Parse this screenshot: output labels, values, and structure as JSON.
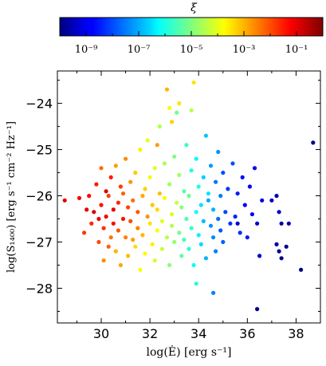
{
  "chart_data": {
    "type": "scatter",
    "xlabel": "log(Ė) [erg s⁻¹]",
    "ylabel": "log(S₁₄₀₀) [erg s⁻¹ cm⁻² Hz⁻¹]",
    "xlim": [
      28.2,
      39.0
    ],
    "ylim": [
      -28.75,
      -23.3
    ],
    "x_ticks": [
      30,
      32,
      34,
      36,
      38
    ],
    "y_ticks": [
      -24,
      -25,
      -26,
      -27,
      -28
    ],
    "x_tick_labels": [
      "30",
      "32",
      "34",
      "36",
      "38"
    ],
    "y_tick_labels": [
      "−24",
      "−25",
      "−26",
      "−27",
      "−28"
    ],
    "grid": false,
    "colorbar": {
      "label": "ξ",
      "scale": "log",
      "range": [
        1e-10,
        1.0
      ],
      "ticks": [
        1e-09,
        1e-07,
        1e-05,
        0.001,
        0.1
      ],
      "tick_labels": [
        "10⁻⁹",
        "10⁻⁷",
        "10⁻⁵",
        "10⁻³",
        "10⁻¹"
      ],
      "colormap": "jet"
    },
    "points": [
      [
        28.5,
        -26.1,
        -1.0
      ],
      [
        29.1,
        -26.05,
        -1.2
      ],
      [
        29.3,
        -26.8,
        -1.8
      ],
      [
        29.4,
        -26.3,
        -1.0
      ],
      [
        29.5,
        -26.0,
        -1.3
      ],
      [
        29.6,
        -26.6,
        -1.6
      ],
      [
        29.7,
        -26.35,
        -0.8
      ],
      [
        29.8,
        -25.75,
        -1.5
      ],
      [
        29.9,
        -27.0,
        -2.0
      ],
      [
        29.9,
        -26.5,
        -1.1
      ],
      [
        30.0,
        -25.4,
        -2.3
      ],
      [
        30.0,
        -26.2,
        -1.4
      ],
      [
        30.1,
        -27.4,
        -2.6
      ],
      [
        30.1,
        -26.7,
        -1.7
      ],
      [
        30.2,
        -25.9,
        -0.9
      ],
      [
        30.2,
        -26.45,
        -1.2
      ],
      [
        30.3,
        -27.1,
        -2.2
      ],
      [
        30.3,
        -26.0,
        -1.9
      ],
      [
        30.4,
        -25.6,
        -1.5
      ],
      [
        30.4,
        -26.9,
        -2.4
      ],
      [
        30.5,
        -26.3,
        -1.0
      ],
      [
        30.5,
        -26.6,
        -1.3
      ],
      [
        30.6,
        -25.35,
        -2.8
      ],
      [
        30.6,
        -27.2,
        -3.0
      ],
      [
        30.7,
        -26.15,
        -1.6
      ],
      [
        30.7,
        -26.75,
        -2.1
      ],
      [
        30.8,
        -25.8,
        -1.8
      ],
      [
        30.8,
        -27.5,
        -2.9
      ],
      [
        30.9,
        -26.5,
        -1.4
      ],
      [
        30.9,
        -25.95,
        -2.2
      ],
      [
        31.0,
        -26.9,
        -2.5
      ],
      [
        31.0,
        -25.2,
        -2.6
      ],
      [
        31.1,
        -26.25,
        -1.9
      ],
      [
        31.1,
        -27.3,
        -3.1
      ],
      [
        31.2,
        -26.55,
        -2.0
      ],
      [
        31.2,
        -25.7,
        -2.7
      ],
      [
        31.3,
        -26.95,
        -2.8
      ],
      [
        31.3,
        -26.1,
        -2.3
      ],
      [
        31.4,
        -25.5,
        -3.2
      ],
      [
        31.4,
        -27.1,
        -3.4
      ],
      [
        31.5,
        -26.35,
        -2.1
      ],
      [
        31.5,
        -26.7,
        -2.5
      ],
      [
        31.6,
        -25.0,
        -3.6
      ],
      [
        31.6,
        -27.6,
        -3.8
      ],
      [
        31.7,
        -26.0,
        -2.9
      ],
      [
        31.7,
        -26.85,
        -3.0
      ],
      [
        31.8,
        -25.85,
        -3.3
      ],
      [
        31.8,
        -27.25,
        -3.7
      ],
      [
        31.9,
        -26.45,
        -2.7
      ],
      [
        31.9,
        -24.8,
        -4.0
      ],
      [
        32.0,
        -26.6,
        -3.5
      ],
      [
        32.0,
        -25.6,
        -3.9
      ],
      [
        32.1,
        -27.05,
        -3.6
      ],
      [
        32.1,
        -26.2,
        -3.2
      ],
      [
        32.2,
        -25.4,
        -4.1
      ],
      [
        32.2,
        -27.4,
        -4.2
      ],
      [
        32.3,
        -26.3,
        -3.4
      ],
      [
        32.3,
        -26.75,
        -3.8
      ],
      [
        32.4,
        -24.5,
        -4.5
      ],
      [
        32.4,
        -25.95,
        -3.1
      ],
      [
        32.5,
        -26.55,
        -4.0
      ],
      [
        32.5,
        -27.15,
        -4.3
      ],
      [
        32.6,
        -25.3,
        -4.6
      ],
      [
        32.6,
        -26.05,
        -3.7
      ],
      [
        32.7,
        -26.9,
        -4.4
      ],
      [
        32.7,
        -23.7,
        -3.0
      ],
      [
        32.8,
        -25.75,
        -4.7
      ],
      [
        32.8,
        -27.5,
        -4.9
      ],
      [
        32.9,
        -26.4,
        -4.1
      ],
      [
        32.9,
        -26.65,
        -4.5
      ],
      [
        33.0,
        -25.15,
        -5.0
      ],
      [
        33.0,
        -27.0,
        -4.8
      ],
      [
        33.1,
        -26.15,
        -4.3
      ],
      [
        33.1,
        -24.2,
        -5.2
      ],
      [
        33.2,
        -26.8,
        -5.1
      ],
      [
        33.2,
        -25.55,
        -4.6
      ],
      [
        33.3,
        -27.3,
        -5.3
      ],
      [
        33.3,
        -26.25,
        -4.9
      ],
      [
        33.4,
        -25.9,
        -5.4
      ],
      [
        33.4,
        -26.95,
        -5.6
      ],
      [
        33.5,
        -26.5,
        -5.5
      ],
      [
        33.5,
        -24.9,
        -5.8
      ],
      [
        33.6,
        -27.15,
        -5.9
      ],
      [
        33.6,
        -26.0,
        -5.2
      ],
      [
        33.7,
        -25.45,
        -6.0
      ],
      [
        33.7,
        -26.7,
        -5.7
      ],
      [
        33.8,
        -23.55,
        -3.5
      ],
      [
        33.8,
        -27.5,
        -6.2
      ],
      [
        33.9,
        -26.35,
        -6.1
      ],
      [
        33.9,
        -25.2,
        -6.3
      ],
      [
        34.0,
        -26.85,
        -6.4
      ],
      [
        34.0,
        -25.8,
        -6.0
      ],
      [
        34.1,
        -27.05,
        -6.6
      ],
      [
        34.1,
        -26.2,
        -6.5
      ],
      [
        34.2,
        -25.6,
        -6.7
      ],
      [
        34.2,
        -26.55,
        -6.9
      ],
      [
        34.3,
        -24.7,
        -6.8
      ],
      [
        34.3,
        -27.35,
        -7.0
      ],
      [
        34.4,
        -26.1,
        -7.1
      ],
      [
        34.4,
        -25.95,
        -6.5
      ],
      [
        34.5,
        -26.65,
        -7.3
      ],
      [
        34.5,
        -25.35,
        -7.2
      ],
      [
        34.6,
        -26.9,
        -7.4
      ],
      [
        34.6,
        -26.3,
        -7.0
      ],
      [
        34.7,
        -25.7,
        -7.6
      ],
      [
        34.7,
        -27.2,
        -7.5
      ],
      [
        34.8,
        -26.5,
        -7.7
      ],
      [
        34.8,
        -25.05,
        -7.3
      ],
      [
        34.9,
        -26.75,
        -7.9
      ],
      [
        34.9,
        -26.0,
        -7.5
      ],
      [
        35.0,
        -25.5,
        -8.0
      ],
      [
        35.0,
        -27.0,
        -7.8
      ],
      [
        35.1,
        -26.35,
        -8.1
      ],
      [
        35.2,
        -25.85,
        -8.2
      ],
      [
        35.3,
        -26.6,
        -8.3
      ],
      [
        35.4,
        -25.3,
        -8.0
      ],
      [
        35.5,
        -26.45,
        -8.4
      ],
      [
        35.6,
        -25.95,
        -8.5
      ],
      [
        35.7,
        -26.8,
        -8.3
      ],
      [
        35.8,
        -25.6,
        -8.6
      ],
      [
        35.9,
        -26.2,
        -8.7
      ],
      [
        36.0,
        -26.9,
        -8.5
      ],
      [
        36.1,
        -25.8,
        -8.8
      ],
      [
        36.2,
        -26.4,
        -8.9
      ],
      [
        36.3,
        -25.4,
        -9.0
      ],
      [
        36.4,
        -26.6,
        -9.1
      ],
      [
        36.5,
        -27.3,
        -9.2
      ],
      [
        36.6,
        -26.1,
        -9.0
      ],
      [
        37.0,
        -26.1,
        -9.4
      ],
      [
        37.2,
        -26.0,
        -9.5
      ],
      [
        37.3,
        -26.35,
        -9.3
      ],
      [
        37.2,
        -27.05,
        -9.6
      ],
      [
        37.3,
        -27.2,
        -9.8
      ],
      [
        37.4,
        -26.6,
        -9.7
      ],
      [
        37.6,
        -27.1,
        -9.8
      ],
      [
        37.7,
        -26.6,
        -9.6
      ],
      [
        38.2,
        -27.6,
        -9.9
      ],
      [
        38.7,
        -24.85,
        -9.9
      ],
      [
        37.4,
        -27.35,
        -9.9
      ],
      [
        36.4,
        -28.45,
        -9.9
      ],
      [
        35.6,
        -26.6,
        -9.2
      ],
      [
        34.6,
        -28.1,
        -7.5
      ],
      [
        33.9,
        -27.9,
        -6.0
      ],
      [
        33.7,
        -24.15,
        -4.5
      ],
      [
        32.8,
        -24.1,
        -3.8
      ],
      [
        33.2,
        -24.0,
        -3.5
      ],
      [
        32.9,
        -24.4,
        -3.3
      ],
      [
        32.3,
        -24.9,
        -2.8
      ]
    ]
  }
}
